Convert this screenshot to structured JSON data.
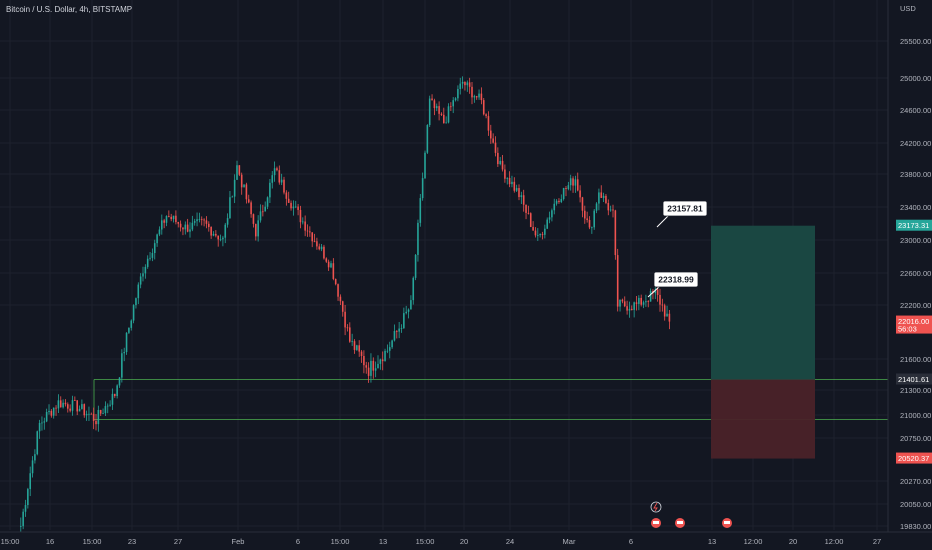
{
  "header": {
    "title": "Bitcoin / U.S. Dollar, 4h, BITSTAMP"
  },
  "colors": {
    "background": "#131722",
    "up": "#26a69a",
    "down": "#ef5350",
    "grid": "#1e222d",
    "zone_line": "#4caf50",
    "profit_zone": "#1a4a44",
    "loss_zone": "#4a2229"
  },
  "price_axis": {
    "currency": "USD",
    "ticks": [
      "25500.00",
      "25000.00",
      "24600.00",
      "24200.00",
      "23800.00",
      "23400.00",
      "23000.00",
      "22600.00",
      "22200.00",
      "21600.00",
      "21300.00",
      "21000.00",
      "20750.00",
      "20270.00",
      "20050.00",
      "19830.00"
    ],
    "tags": [
      {
        "price": "23173.31",
        "color": "#26a69a"
      },
      {
        "price": "22016.00",
        "sub": "56:03",
        "color": "#ef5350"
      },
      {
        "price": "21401.61",
        "color": "#2a2e39"
      },
      {
        "price": "20520.37",
        "color": "#ef5350"
      }
    ]
  },
  "time_axis": {
    "ticks": [
      "15:00",
      "16",
      "15:00",
      "23",
      "27",
      "Feb",
      "6",
      "15:00",
      "13",
      "15:00",
      "20",
      "24",
      "Mar",
      "6",
      "13",
      "12:00",
      "20",
      "12:00",
      "27"
    ]
  },
  "annotations": {
    "callout_1": "23157.81",
    "callout_2": "22318.99"
  },
  "chart_data": {
    "type": "candlestick",
    "symbol": "Bitcoin / U.S. Dollar",
    "interval": "4h",
    "exchange": "BITSTAMP",
    "y_axis_ticks": [
      25500,
      25000,
      24600,
      24200,
      23800,
      23400,
      23000,
      22600,
      22200,
      21600,
      21300,
      21000,
      20750,
      20270,
      20050,
      19830
    ],
    "current_price": 22016.0,
    "countdown": "56:03",
    "horizontal_levels": [
      21401.61,
      20950
    ],
    "position": {
      "entry": 21401.61,
      "target": 23173.31,
      "stop": 20520.37
    },
    "callouts": [
      23157.81,
      22318.99
    ],
    "approx_path": [
      [
        0,
        19830
      ],
      [
        8,
        20900
      ],
      [
        16,
        21150
      ],
      [
        24,
        21100
      ],
      [
        32,
        20950
      ],
      [
        40,
        21250
      ],
      [
        52,
        22650
      ],
      [
        62,
        23300
      ],
      [
        70,
        23150
      ],
      [
        78,
        23200
      ],
      [
        86,
        23000
      ],
      [
        92,
        23900
      ],
      [
        100,
        23100
      ],
      [
        108,
        23850
      ],
      [
        116,
        23400
      ],
      [
        124,
        23050
      ],
      [
        132,
        22700
      ],
      [
        140,
        21800
      ],
      [
        148,
        21500
      ],
      [
        156,
        21700
      ],
      [
        166,
        22200
      ],
      [
        174,
        24700
      ],
      [
        180,
        24450
      ],
      [
        188,
        24950
      ],
      [
        196,
        24700
      ],
      [
        204,
        23900
      ],
      [
        212,
        23550
      ],
      [
        220,
        23000
      ],
      [
        228,
        23500
      ],
      [
        236,
        23750
      ],
      [
        242,
        23100
      ],
      [
        246,
        23600
      ],
      [
        252,
        23300
      ],
      [
        254,
        22200
      ],
      [
        262,
        22200
      ],
      [
        270,
        22350
      ],
      [
        276,
        22016
      ]
    ]
  }
}
